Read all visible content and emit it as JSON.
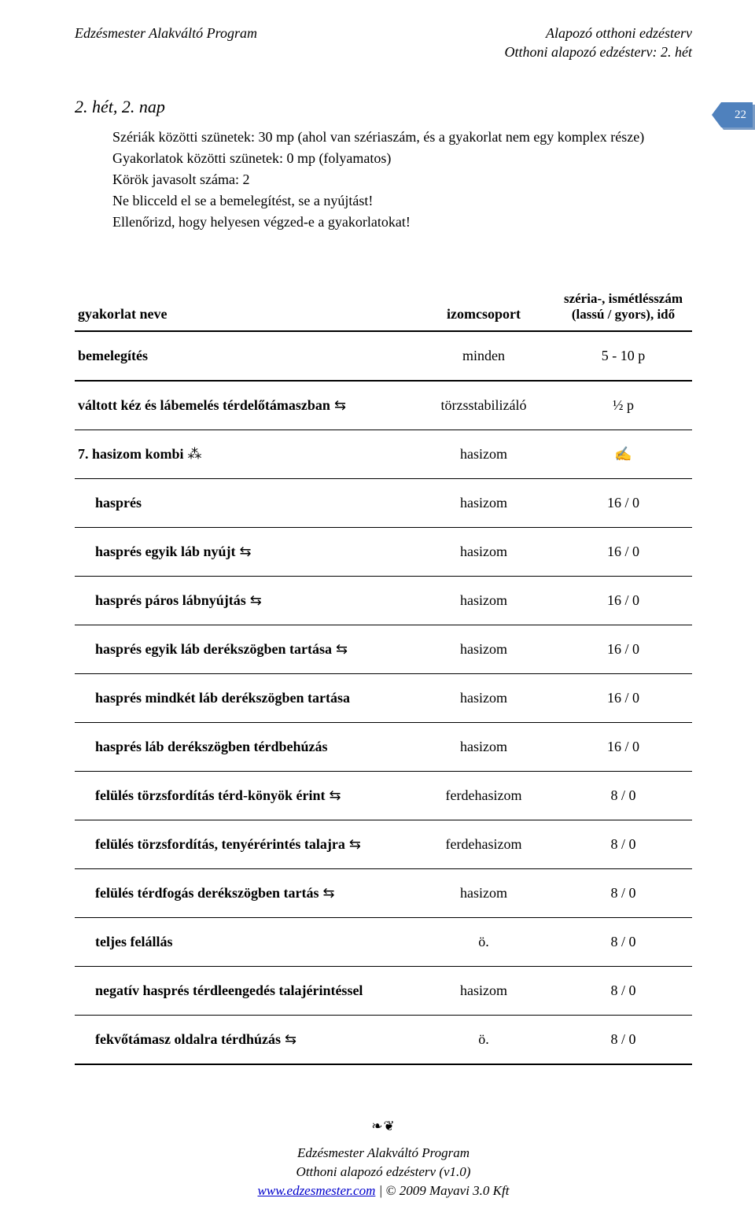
{
  "header": {
    "left": "Edzésmester Alakváltó Program",
    "right1": "Alapozó otthoni edzésterv",
    "right2": "Otthoni alapozó edzésterv: 2. hét"
  },
  "page_number": "22",
  "day_title": "2. hét, 2. nap",
  "notes": {
    "l1": "Szériák közötti szünetek: 30 mp (ahol van szériaszám, és a gyakorlat nem egy komplex része)",
    "l2": "Gyakorlatok közötti szünetek: 0 mp (folyamatos)",
    "l3": "Körök javasolt száma: 2",
    "l4": "Ne blicceld el se a bemelegítést, se a nyújtást!",
    "l5": "Ellenőrizd, hogy helyesen végzed-e a gyakorlatokat!"
  },
  "table": {
    "head": {
      "name": "gyakorlat neve",
      "muscle": "izomcsoport",
      "reps": "széria-, ismét­lésszám (lassú / gyors), idő"
    },
    "rows": [
      {
        "name": "bemelegítés",
        "muscle": "minden",
        "reps": "5 - 10 p",
        "bold": true,
        "hdr": true
      },
      {
        "name": "váltott kéz és lábemelés térdelőtámaszban",
        "sym": "⇆",
        "muscle": "törzsstabilizáló",
        "reps": "½ p",
        "bold": true
      },
      {
        "name": "7. hasizom kombi",
        "sym": "⁂",
        "muscle": "hasizom",
        "reps": "✍",
        "bold": true,
        "repsSym": true
      },
      {
        "name": "hasprés",
        "muscle": "hasizom",
        "reps": "16 / 0",
        "bold": true,
        "indent": true
      },
      {
        "name": "hasprés egyik láb nyújt",
        "sym": "⇆",
        "muscle": "hasizom",
        "reps": "16 / 0",
        "bold": true,
        "indent": true
      },
      {
        "name": "hasprés páros lábnyújtás",
        "sym": "⇆",
        "muscle": "hasizom",
        "reps": "16 / 0",
        "bold": true,
        "indent": true
      },
      {
        "name": "hasprés egyik láb derékszögben tartása",
        "sym": "⇆",
        "muscle": "hasizom",
        "reps": "16 / 0",
        "bold": true,
        "indent": true
      },
      {
        "name": "hasprés mindkét láb derékszögben tartása",
        "muscle": "hasizom",
        "reps": "16 / 0",
        "bold": true,
        "indent": true
      },
      {
        "name": "hasprés láb derékszögben térdbehúzás",
        "muscle": "hasizom",
        "reps": "16 / 0",
        "bold": true,
        "indent": true
      },
      {
        "name": "felülés törzsfordítás térd-könyök érint",
        "sym": "⇆",
        "muscle": "ferdehasizom",
        "reps": "8 / 0",
        "bold": true,
        "indent": true
      },
      {
        "name": "felülés törzsfordítás, tenyérérintés talajra",
        "sym": "⇆",
        "muscle": "ferdehasizom",
        "reps": "8 / 0",
        "bold": true,
        "indent": true
      },
      {
        "name": "felülés térdfogás derékszögben tartás",
        "sym": "⇆",
        "muscle": "hasizom",
        "reps": "8 / 0",
        "bold": true,
        "indent": true
      },
      {
        "name": "teljes felállás",
        "muscle": "ö.",
        "reps": "8 / 0",
        "bold": true,
        "indent": true
      },
      {
        "name": "negatív hasprés térdleengedés talajérintéssel",
        "muscle": "hasizom",
        "reps": "8 / 0",
        "bold": true,
        "indent": true
      },
      {
        "name": "fekvőtámasz oldalra térdhúzás",
        "sym": "⇆",
        "muscle": "ö.",
        "reps": "8 / 0",
        "bold": true,
        "indent": true,
        "last": true
      }
    ]
  },
  "footer": {
    "deco": "❧❦",
    "line1": "Edzésmester Alakváltó Program",
    "line2": "Otthoni alapozó edzésterv (v1.0)",
    "link": "www.edzesmester.com",
    "copyright": " | © 2009 Mayavi 3.0 Kft"
  },
  "colors": {
    "badge_front": "#4f81bd",
    "badge_shadow": "#7a9cc6",
    "link": "#0000cc",
    "text": "#000000",
    "bg": "#ffffff"
  }
}
